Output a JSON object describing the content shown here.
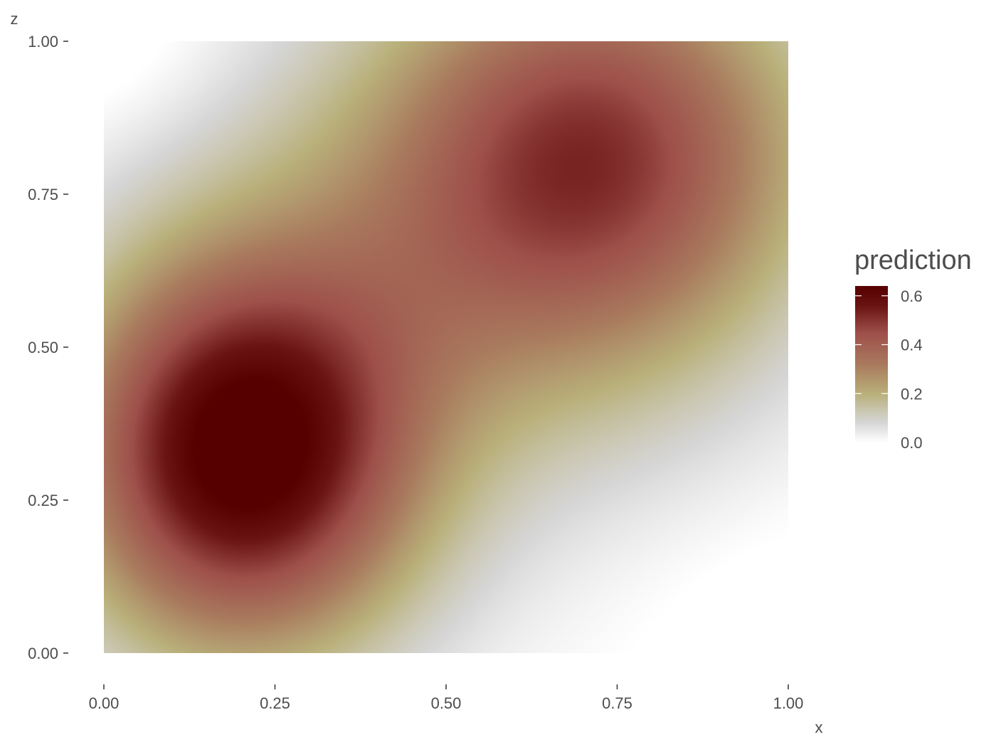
{
  "chart_data": {
    "type": "heatmap",
    "title": "",
    "xlabel": "x",
    "ylabel": "z",
    "xlim": [
      0,
      1
    ],
    "ylim": [
      0,
      1
    ],
    "x_ticks": [
      0,
      0.25,
      0.5,
      0.75,
      1
    ],
    "x_tick_labels": [
      "0.00",
      "0.25",
      "0.50",
      "0.75",
      "1.00"
    ],
    "y_ticks": [
      0,
      0.25,
      0.5,
      0.75,
      1
    ],
    "y_tick_labels": [
      "0.00",
      "0.25",
      "0.50",
      "0.75",
      "1.00"
    ],
    "grid": false,
    "value_field": "prediction",
    "z_range": [
      0,
      0.64
    ],
    "peaks": [
      {
        "x": 0.2,
        "z": 0.32,
        "value": 0.64
      },
      {
        "x": 0.72,
        "z": 0.82,
        "value": 0.46
      }
    ],
    "legend": {
      "title": "prediction",
      "position": "right",
      "ticks": [
        0.0,
        0.2,
        0.4,
        0.6
      ],
      "tick_labels": [
        "0.0",
        "0.2",
        "0.4",
        "0.6"
      ]
    },
    "colorscale": [
      {
        "value": 0.0,
        "color": "#ffffff"
      },
      {
        "value": 0.08,
        "color": "#d6d6d6"
      },
      {
        "value": 0.2,
        "color": "#b9b07a"
      },
      {
        "value": 0.32,
        "color": "#a97a5e"
      },
      {
        "value": 0.45,
        "color": "#9e4f4a"
      },
      {
        "value": 0.56,
        "color": "#6a1414"
      },
      {
        "value": 0.64,
        "color": "#560000"
      }
    ]
  }
}
